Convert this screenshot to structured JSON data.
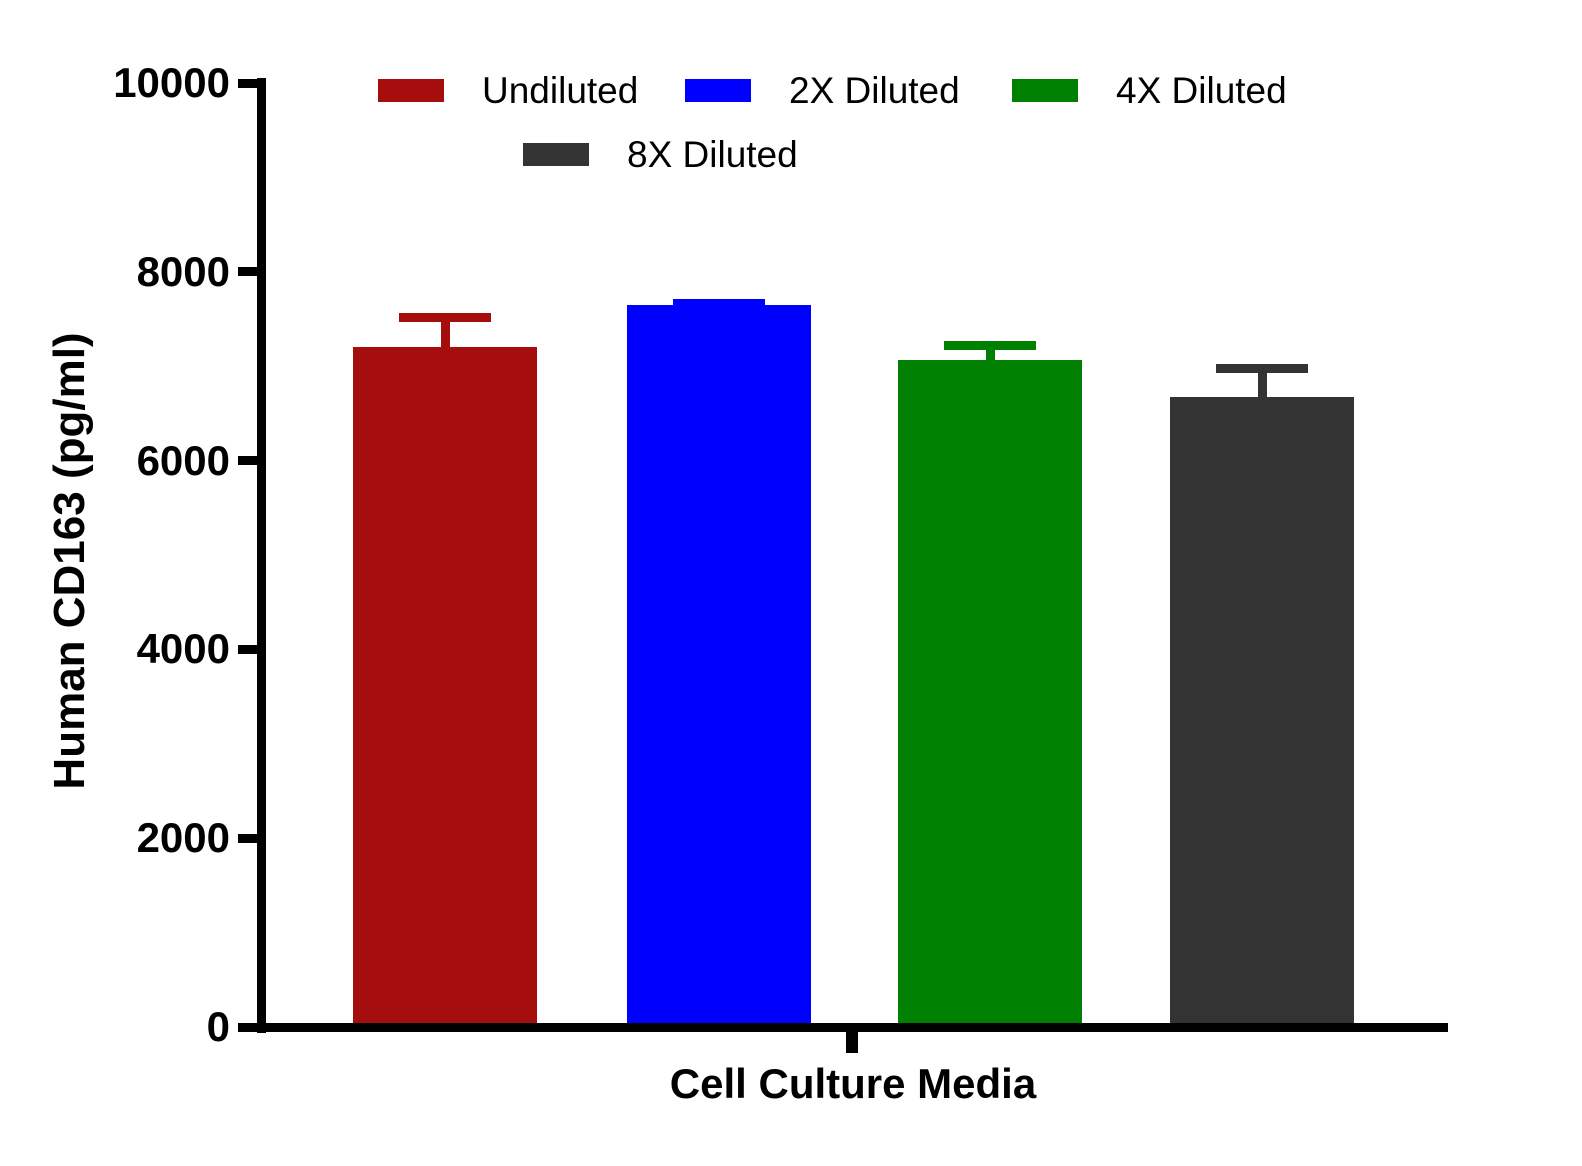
{
  "colors": {
    "axis": "#000000",
    "background": "#FFFFFF",
    "text": "#000000"
  },
  "chart_data": {
    "type": "bar",
    "title": "",
    "xlabel": "Cell Culture Media",
    "ylabel": "Human CD163 (pg/ml)",
    "ylim": [
      0,
      10000
    ],
    "yticks": [
      0,
      2000,
      4000,
      6000,
      8000,
      10000
    ],
    "grid": false,
    "legend_position": "top",
    "error_bars": "upper SD only, colored per series",
    "categories": [
      "Undiluted",
      "2X Diluted",
      "4X Diluted",
      "8X Diluted"
    ],
    "series": [
      {
        "name": "Undiluted",
        "value": 7200,
        "error_top": 7560,
        "sd": 360,
        "color": "#A60D0D",
        "color_name": "dark-red"
      },
      {
        "name": "2X Diluted",
        "value": 7650,
        "error_top": 7710,
        "sd": 60,
        "color": "#0000FF",
        "color_name": "blue"
      },
      {
        "name": "4X Diluted",
        "value": 7070,
        "error_top": 7270,
        "sd": 200,
        "color": "#008000",
        "color_name": "green"
      },
      {
        "name": "8X Diluted",
        "value": 6670,
        "error_top": 7020,
        "sd": 350,
        "color": "#333333",
        "color_name": "dark-gray"
      }
    ]
  }
}
